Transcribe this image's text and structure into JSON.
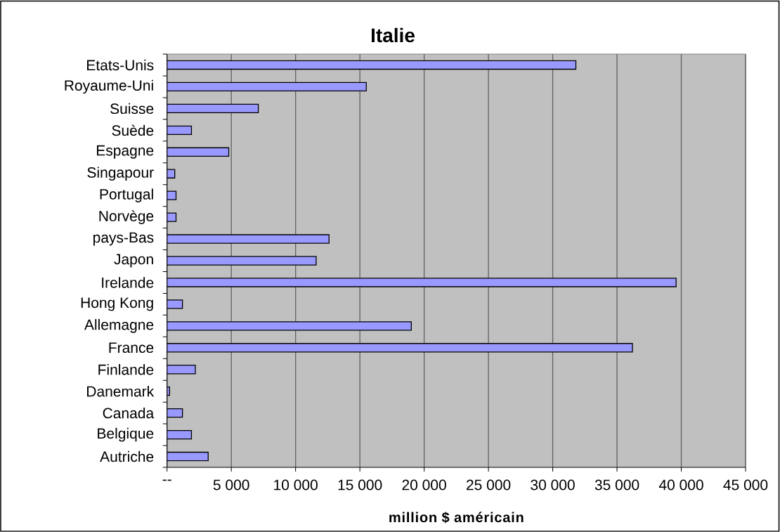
{
  "chart_data": {
    "type": "bar",
    "orientation": "horizontal",
    "title": "Italie",
    "xlabel": "million $ américain",
    "categories": [
      "Etats-Unis",
      "Royaume-Uni",
      "Suisse",
      "Suède",
      "Espagne",
      "Singapour",
      "Portugal",
      "Norvège",
      "pays-Bas",
      "Japon",
      "Irelande",
      "Hong Kong",
      "Allemagne",
      "France",
      "Finlande",
      "Danemark",
      "Canada",
      "Belgique",
      "Autriche"
    ],
    "values": [
      31800,
      15500,
      7100,
      1900,
      4800,
      600,
      700,
      700,
      12600,
      11600,
      39600,
      1200,
      19000,
      36200,
      2200,
      200,
      1200,
      1900,
      3200
    ],
    "color": "#9999ff",
    "xlim": [
      0,
      45000
    ],
    "xticks": [
      {
        "value": 0,
        "label": "--"
      },
      {
        "value": 5000,
        "label": "5 000"
      },
      {
        "value": 10000,
        "label": "10 000"
      },
      {
        "value": 15000,
        "label": "15 000"
      },
      {
        "value": 20000,
        "label": "20 000"
      },
      {
        "value": 25000,
        "label": "25 000"
      },
      {
        "value": 30000,
        "label": "30 000"
      },
      {
        "value": 35000,
        "label": "35 000"
      },
      {
        "value": 40000,
        "label": "40 000"
      },
      {
        "value": 45000,
        "label": "45 000"
      }
    ],
    "grid": "x"
  }
}
